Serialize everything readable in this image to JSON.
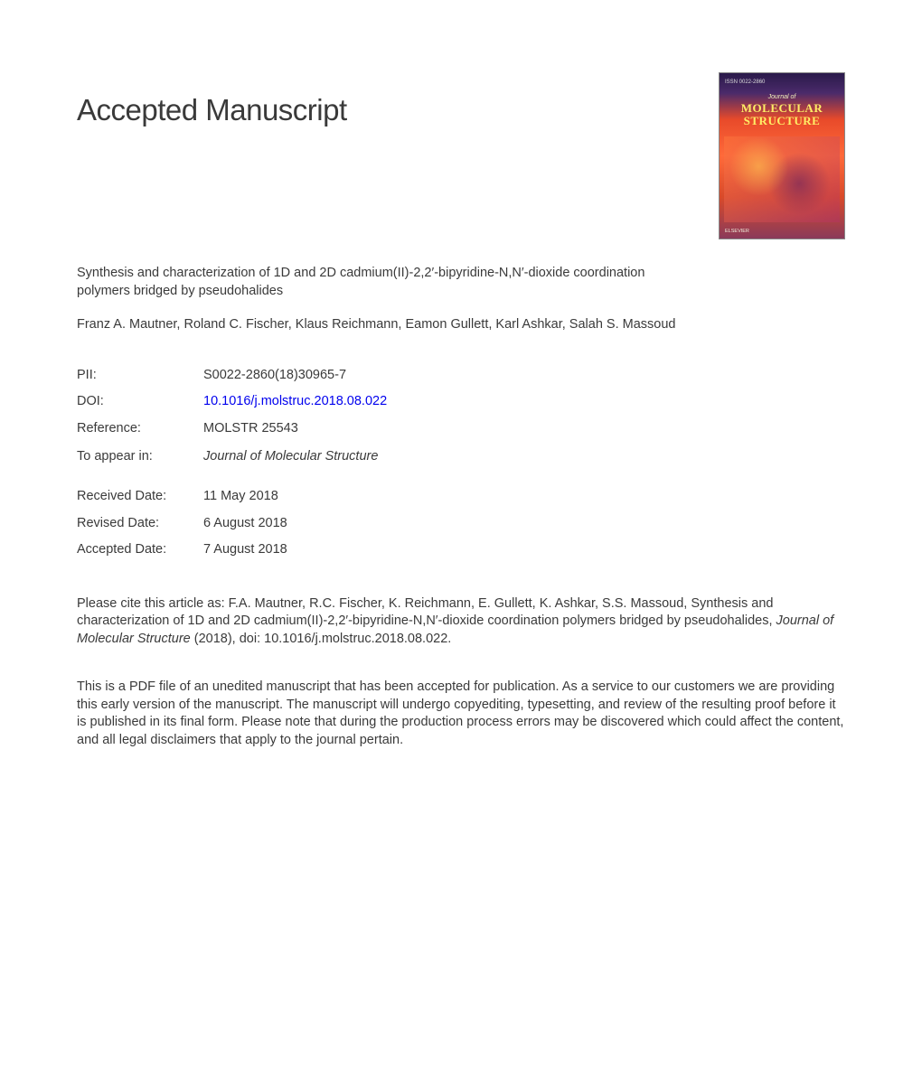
{
  "page_title": "Accepted Manuscript",
  "article_title": "Synthesis and characterization of 1D and 2D cadmium(II)-2,2′-bipyridine-N,N′-dioxide coordination polymers bridged by pseudohalides",
  "authors": "Franz A. Mautner, Roland C. Fischer, Klaus Reichmann, Eamon Gullett, Karl Ashkar, Salah S. Massoud",
  "meta": {
    "pii_label": "PII:",
    "pii_value": "S0022-2860(18)30965-7",
    "doi_label": "DOI:",
    "doi_value": "10.1016/j.molstruc.2018.08.022",
    "ref_label": "Reference:",
    "ref_value": "MOLSTR 25543",
    "appear_label": "To appear in:",
    "appear_value": "Journal of Molecular Structure",
    "received_label": "Received Date:",
    "received_value": "11 May 2018",
    "revised_label": "Revised Date:",
    "revised_value": "6 August 2018",
    "accepted_label": "Accepted Date:",
    "accepted_value": "7 August 2018"
  },
  "citation_prefix": "Please cite this article as: F.A. Mautner, R.C. Fischer, K. Reichmann, E. Gullett, K. Ashkar, S.S. Massoud, Synthesis and characterization of 1D and 2D cadmium(II)-2,2′-bipyridine-N,N′-dioxide coordination polymers bridged by pseudohalides, ",
  "citation_journal": "Journal of Molecular Structure",
  "citation_suffix": " (2018), doi: 10.1016/j.molstruc.2018.08.022.",
  "disclaimer": "This is a PDF file of an unedited manuscript that has been accepted for publication. As a service to our customers we are providing this early version of the manuscript. The manuscript will undergo copyediting, typesetting, and review of the resulting proof before it is published in its final form. Please note that during the production process errors may be discovered which could affect the content, and all legal disclaimers that apply to the journal pertain.",
  "cover": {
    "journal_of": "Journal of",
    "title_line1": "MOLECULAR",
    "title_line2": "STRUCTURE",
    "publisher": "ELSEVIER",
    "issn_hint": "ISSN 0022-2860"
  },
  "colors": {
    "text": "#3a3a3a",
    "link": "#0000ee",
    "background": "#ffffff"
  }
}
